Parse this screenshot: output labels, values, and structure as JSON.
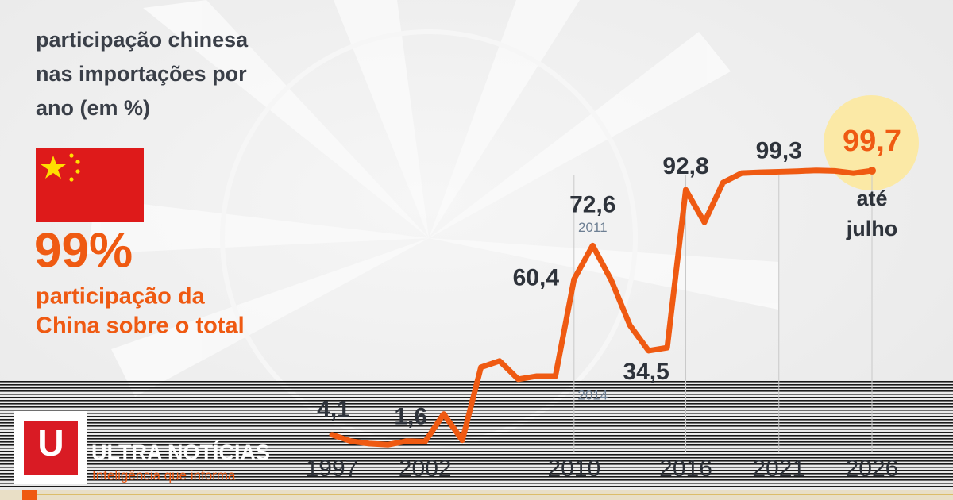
{
  "headline": {
    "title_lines": [
      "participação chinesa",
      "nas importações por",
      "ano (em %)"
    ],
    "big_number": "99%",
    "caption_lines": [
      "participação da",
      "China sobre o total"
    ]
  },
  "brand": {
    "logo": "U",
    "name": "ULTRA NOTÍCIAS",
    "tagline": "Inteligência que informa"
  },
  "chart_data": {
    "type": "line",
    "x": [
      1997,
      1998,
      1999,
      2000,
      2001,
      2002,
      2003,
      2004,
      2005,
      2006,
      2007,
      2008,
      2009,
      2010,
      2011,
      2012,
      2013,
      2014,
      2015,
      2016,
      2017,
      2018,
      2019,
      2020,
      2021,
      2022,
      2023,
      2024,
      2025,
      2026
    ],
    "series": [
      {
        "name": "participação chinesa",
        "color": "#ef5a12",
        "values": [
          4.1,
          1.8,
          0.9,
          0.5,
          1.8,
          1.6,
          11.6,
          2.1,
          28.5,
          30.8,
          24.2,
          25.3,
          25.3,
          60.4,
          72.6,
          60,
          43.7,
          34.5,
          35.6,
          92.8,
          81,
          95.4,
          98.8,
          99.1,
          99.3,
          99.5,
          99.8,
          99.6,
          98.8,
          99.7
        ],
        "value_labels": [
          "4,1",
          null,
          null,
          null,
          null,
          "1,6",
          null,
          null,
          null,
          null,
          null,
          null,
          null,
          "60,4",
          "72,6",
          null,
          null,
          "34,5",
          null,
          "92,8",
          null,
          null,
          null,
          null,
          "99,3",
          null,
          null,
          null,
          null,
          "99,7"
        ]
      }
    ],
    "xlim": [
      1997,
      2026
    ],
    "xticks": [
      1997,
      2002,
      2010,
      2016,
      2021,
      2026
    ],
    "ylim": [
      0,
      100
    ],
    "annotations": [
      "2011",
      "2014",
      "até",
      "julho"
    ]
  }
}
